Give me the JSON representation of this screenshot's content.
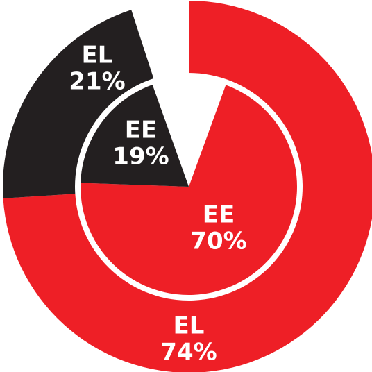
{
  "chart_data": {
    "type": "pie",
    "series": [
      {
        "name": "EL",
        "colors": [
          "#ee1f26",
          "#231f20"
        ],
        "values": [
          74,
          21
        ],
        "value_labels": [
          "74%",
          "21%"
        ]
      },
      {
        "name": "EE",
        "colors": [
          "#ee1f26",
          "#231f20"
        ],
        "values": [
          70,
          19
        ],
        "value_labels": [
          "70%",
          "19%"
        ]
      }
    ]
  }
}
